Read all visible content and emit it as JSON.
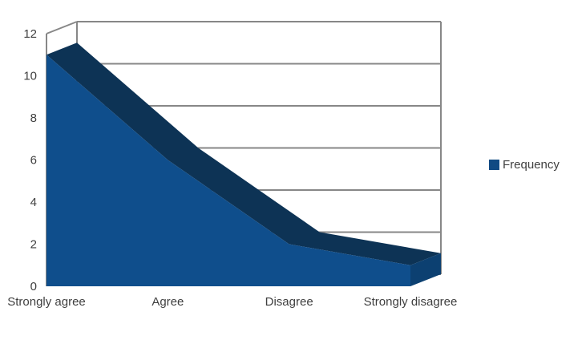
{
  "chart_data": {
    "type": "area",
    "variant": "3d-area",
    "title": "",
    "xlabel": "",
    "ylabel": "",
    "categories": [
      "Strongly agree",
      "Agree",
      "Disagree",
      "Strongly disagree"
    ],
    "series": [
      {
        "name": "Frequency",
        "values": [
          11,
          6,
          2,
          1
        ]
      }
    ],
    "ylim": [
      0,
      12
    ],
    "ytick_step": 2,
    "yticks": [
      0,
      2,
      4,
      6,
      8,
      10,
      12
    ],
    "grid": true,
    "legend_position": "right",
    "colors": {
      "area_front": "#0F4E8C",
      "area_top": "#0D3355",
      "area_side": "#0C4071",
      "gridline": "#878787",
      "axis": "#878787",
      "text": "#3F3F3F",
      "legend_swatch": "#104A83",
      "background": "#FFFFFF"
    }
  }
}
